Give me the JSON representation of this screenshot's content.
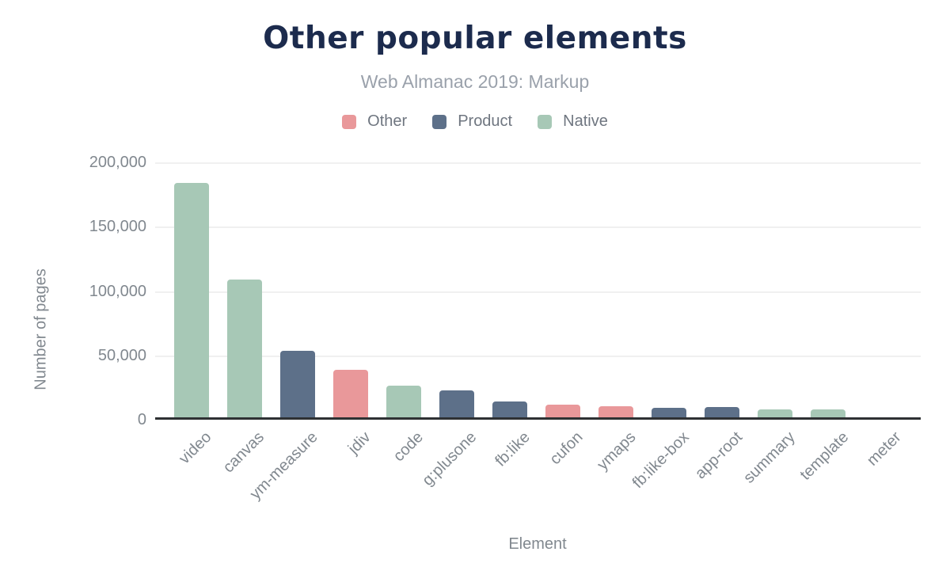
{
  "header": {
    "title": "Other popular elements",
    "subtitle": "Web Almanac 2019: Markup"
  },
  "legend": {
    "items": [
      {
        "label": "Other",
        "color": "#e9989a"
      },
      {
        "label": "Product",
        "color": "#5d7089"
      },
      {
        "label": "Native",
        "color": "#a7c8b6"
      }
    ]
  },
  "chart_data": {
    "type": "bar",
    "title": "Other popular elements",
    "subtitle": "Web Almanac 2019: Markup",
    "xlabel": "Element",
    "ylabel": "Number of pages",
    "ylim": [
      0,
      200000
    ],
    "yticks": [
      0,
      50000,
      100000,
      150000,
      200000
    ],
    "ytick_labels": [
      "0",
      "50,000",
      "100,000",
      "150,000",
      "200,000"
    ],
    "grid": true,
    "legend_position": "top",
    "legend_entries": [
      "Other",
      "Product",
      "Native"
    ],
    "colors": {
      "Other": "#e9989a",
      "Product": "#5d7089",
      "Native": "#a7c8b6"
    },
    "categories": [
      "video",
      "canvas",
      "ym-measure",
      "jdiv",
      "code",
      "g:plusone",
      "fb:like",
      "cufon",
      "ymaps",
      "fb:like-box",
      "app-root",
      "summary",
      "template",
      "meter"
    ],
    "series_by_bar": [
      "Native",
      "Native",
      "Product",
      "Other",
      "Native",
      "Product",
      "Product",
      "Other",
      "Other",
      "Product",
      "Product",
      "Native",
      "Native",
      "Native"
    ],
    "values": [
      184000,
      108000,
      52000,
      37000,
      25000,
      21000,
      12500,
      10000,
      8700,
      7200,
      8200,
      6400,
      6000,
      0
    ]
  }
}
